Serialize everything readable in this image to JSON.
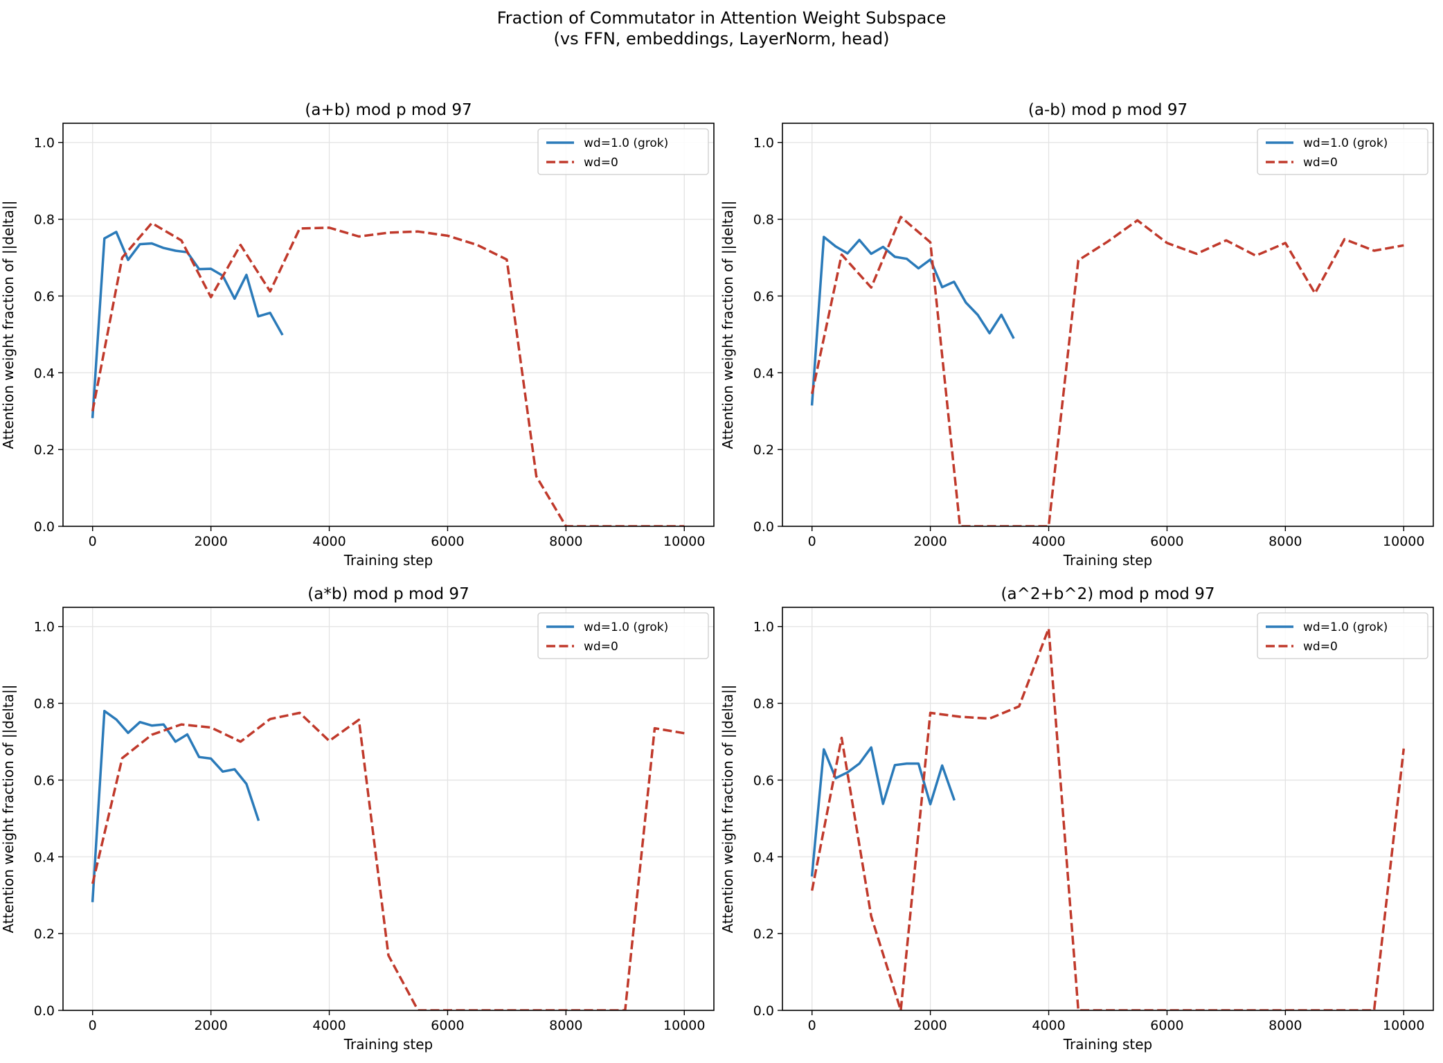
{
  "figure": {
    "title_line1": "Fraction of Commutator in Attention Weight Subspace",
    "title_line2": "(vs FFN, embeddings, LayerNorm, head)"
  },
  "colors": {
    "grok": "#2a7ab9",
    "wd0": "#c0392b",
    "grid": "#e3e3e3",
    "axes": "#000000"
  },
  "chart_data": [
    {
      "type": "line",
      "title": "(a+b) mod p mod 97",
      "xlabel": "Training step",
      "ylabel": "Attention weight fraction of ||delta||",
      "xlim": [
        -500,
        10500
      ],
      "ylim": [
        0,
        1.05
      ],
      "xticks": [
        0,
        2000,
        4000,
        6000,
        8000,
        10000
      ],
      "yticks": [
        0.0,
        0.2,
        0.4,
        0.6,
        0.8,
        1.0
      ],
      "legend": "top-right",
      "series": [
        {
          "name": "wd=1.0 (grok)",
          "style": "solid",
          "x": [
            0,
            200,
            400,
            600,
            800,
            1000,
            1200,
            1400,
            1600,
            1800,
            2000,
            2200,
            2400,
            2600,
            2800,
            3000,
            3200
          ],
          "y": [
            0.285,
            0.75,
            0.767,
            0.694,
            0.735,
            0.737,
            0.725,
            0.718,
            0.714,
            0.67,
            0.671,
            0.653,
            0.593,
            0.655,
            0.547,
            0.556,
            0.501
          ]
        },
        {
          "name": "wd=0",
          "style": "dashed",
          "x": [
            0,
            500,
            1000,
            1500,
            2000,
            2500,
            3000,
            3500,
            4000,
            4500,
            5000,
            5500,
            6000,
            6500,
            7000,
            7500,
            8000,
            8500,
            9000,
            9500,
            10000
          ],
          "y": [
            0.3,
            0.7,
            0.79,
            0.745,
            0.597,
            0.733,
            0.612,
            0.776,
            0.778,
            0.755,
            0.765,
            0.768,
            0.757,
            0.733,
            0.695,
            0.13,
            0.0,
            0.0,
            0.0,
            0.0,
            0.0
          ]
        }
      ]
    },
    {
      "type": "line",
      "title": "(a-b) mod p mod 97",
      "xlabel": "Training step",
      "ylabel": "Attention weight fraction of ||delta||",
      "xlim": [
        -500,
        10500
      ],
      "ylim": [
        0,
        1.05
      ],
      "xticks": [
        0,
        2000,
        4000,
        6000,
        8000,
        10000
      ],
      "yticks": [
        0.0,
        0.2,
        0.4,
        0.6,
        0.8,
        1.0
      ],
      "legend": "top-right",
      "series": [
        {
          "name": "wd=1.0 (grok)",
          "style": "solid",
          "x": [
            0,
            200,
            400,
            600,
            800,
            1000,
            1200,
            1400,
            1600,
            1800,
            2000,
            2200,
            2400,
            2600,
            2800,
            3000,
            3200,
            3400
          ],
          "y": [
            0.318,
            0.754,
            0.729,
            0.711,
            0.746,
            0.71,
            0.728,
            0.702,
            0.697,
            0.672,
            0.695,
            0.623,
            0.637,
            0.583,
            0.551,
            0.503,
            0.551,
            0.492
          ]
        },
        {
          "name": "wd=0",
          "style": "dashed",
          "x": [
            0,
            500,
            1000,
            1500,
            2000,
            2500,
            3000,
            3500,
            4000,
            4500,
            5000,
            5500,
            6000,
            6500,
            7000,
            7500,
            8000,
            8500,
            9000,
            9500,
            10000
          ],
          "y": [
            0.345,
            0.708,
            0.622,
            0.806,
            0.74,
            0.0,
            0.0,
            0.0,
            0.0,
            0.693,
            0.742,
            0.797,
            0.738,
            0.71,
            0.745,
            0.705,
            0.738,
            0.607,
            0.748,
            0.718,
            0.732
          ]
        }
      ]
    },
    {
      "type": "line",
      "title": "(a*b) mod p mod 97",
      "xlabel": "Training step",
      "ylabel": "Attention weight fraction of ||delta||",
      "xlim": [
        -500,
        10500
      ],
      "ylim": [
        0,
        1.05
      ],
      "xticks": [
        0,
        2000,
        4000,
        6000,
        8000,
        10000
      ],
      "yticks": [
        0.0,
        0.2,
        0.4,
        0.6,
        0.8,
        1.0
      ],
      "legend": "top-right",
      "series": [
        {
          "name": "wd=1.0 (grok)",
          "style": "solid",
          "x": [
            0,
            200,
            400,
            600,
            800,
            1000,
            1200,
            1400,
            1600,
            1800,
            2000,
            2200,
            2400,
            2600,
            2800
          ],
          "y": [
            0.285,
            0.78,
            0.758,
            0.723,
            0.751,
            0.742,
            0.745,
            0.7,
            0.719,
            0.66,
            0.656,
            0.622,
            0.628,
            0.59,
            0.497
          ]
        },
        {
          "name": "wd=0",
          "style": "dashed",
          "x": [
            0,
            500,
            1000,
            1500,
            2000,
            2500,
            3000,
            3500,
            4000,
            4500,
            5000,
            5500,
            6000,
            6500,
            7000,
            7500,
            8000,
            8500,
            9000,
            9500,
            10000
          ],
          "y": [
            0.33,
            0.657,
            0.718,
            0.745,
            0.737,
            0.7,
            0.759,
            0.775,
            0.702,
            0.757,
            0.143,
            0.0,
            0.0,
            0.0,
            0.0,
            0.0,
            0.0,
            0.0,
            0.0,
            0.735,
            0.722
          ]
        }
      ]
    },
    {
      "type": "line",
      "title": "(a^2+b^2) mod p mod 97",
      "xlabel": "Training step",
      "ylabel": "Attention weight fraction of ||delta||",
      "xlim": [
        -500,
        10500
      ],
      "ylim": [
        0,
        1.05
      ],
      "xticks": [
        0,
        2000,
        4000,
        6000,
        8000,
        10000
      ],
      "yticks": [
        0.0,
        0.2,
        0.4,
        0.6,
        0.8,
        1.0
      ],
      "legend": "top-right",
      "series": [
        {
          "name": "wd=1.0 (grok)",
          "style": "solid",
          "x": [
            0,
            200,
            400,
            600,
            800,
            1000,
            1200,
            1400,
            1600,
            1800,
            2000,
            2200,
            2400
          ],
          "y": [
            0.352,
            0.68,
            0.605,
            0.62,
            0.643,
            0.685,
            0.538,
            0.639,
            0.643,
            0.643,
            0.537,
            0.638,
            0.55
          ]
        },
        {
          "name": "wd=0",
          "style": "dashed",
          "x": [
            0,
            500,
            1000,
            1500,
            2000,
            2500,
            3000,
            3500,
            4000,
            4500,
            5000,
            5500,
            6000,
            6500,
            7000,
            7500,
            8000,
            8500,
            9000,
            9500,
            10000
          ],
          "y": [
            0.312,
            0.71,
            0.245,
            0.0,
            0.775,
            0.765,
            0.76,
            0.792,
            0.995,
            0.0,
            0.0,
            0.0,
            0.0,
            0.0,
            0.0,
            0.0,
            0.0,
            0.0,
            0.0,
            0.0,
            0.682
          ]
        }
      ]
    }
  ]
}
